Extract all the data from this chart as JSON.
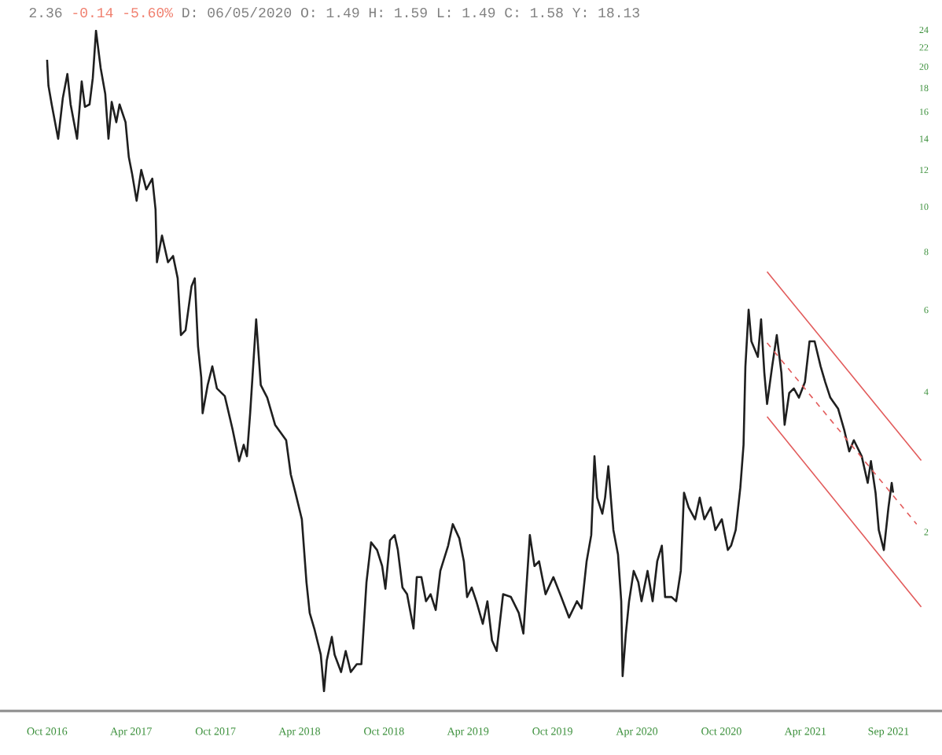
{
  "chart_data": {
    "type": "line",
    "log": "y",
    "annotations": [
      "2.36",
      "-0.14",
      "-5.60%",
      "D: 06/05/2020",
      "O: 1.49",
      "H: 1.59",
      "L: 1.49",
      "C: 1.58",
      "Y: 18.13"
    ],
    "xlim": [
      "2016-06-21",
      "2022-01-22"
    ],
    "ylim": [
      0.825,
      24
    ],
    "xticks": [
      {
        "value": "2016-10-01",
        "label": "Oct 2016"
      },
      {
        "value": "2017-04-01",
        "label": "Apr 2017"
      },
      {
        "value": "2017-10-01",
        "label": "Oct 2017"
      },
      {
        "value": "2018-04-01",
        "label": "Apr 2018"
      },
      {
        "value": "2018-10-01",
        "label": "Oct 2018"
      },
      {
        "value": "2019-04-01",
        "label": "Apr 2019"
      },
      {
        "value": "2019-10-01",
        "label": "Oct 2019"
      },
      {
        "value": "2020-04-01",
        "label": "Apr 2020"
      },
      {
        "value": "2020-10-01",
        "label": "Oct 2020"
      },
      {
        "value": "2021-04-01",
        "label": "Apr 2021"
      },
      {
        "value": "2021-09-28",
        "label": "Sep 2021"
      }
    ],
    "yticks": [
      2,
      4,
      6,
      8,
      10,
      12,
      14,
      16,
      18,
      20,
      22,
      24
    ],
    "x": [
      "2016-10-01",
      "2016-10-04",
      "2016-10-11",
      "2016-10-25",
      "2016-11-04",
      "2016-11-14",
      "2016-11-21",
      "2016-12-05",
      "2016-12-15",
      "2016-12-22",
      "2017-01-01",
      "2017-01-08",
      "2017-01-15",
      "2017-01-25",
      "2017-02-04",
      "2017-02-11",
      "2017-02-18",
      "2017-02-28",
      "2017-03-07",
      "2017-03-20",
      "2017-03-27",
      "2017-04-03",
      "2017-04-13",
      "2017-04-23",
      "2017-05-04",
      "2017-05-17",
      "2017-05-24",
      "2017-05-27",
      "2017-06-07",
      "2017-06-20",
      "2017-07-01",
      "2017-07-11",
      "2017-07-18",
      "2017-07-28",
      "2017-08-10",
      "2017-08-17",
      "2017-08-24",
      "2017-08-31",
      "2017-09-03",
      "2017-09-14",
      "2017-09-24",
      "2017-10-04",
      "2017-10-21",
      "2017-11-07",
      "2017-11-21",
      "2017-12-01",
      "2017-12-08",
      "2017-12-15",
      "2017-12-28",
      "2018-01-07",
      "2018-01-21",
      "2018-02-07",
      "2018-03-03",
      "2018-03-13",
      "2018-03-23",
      "2018-04-06",
      "2018-04-16",
      "2018-04-23",
      "2018-05-03",
      "2018-05-17",
      "2018-05-24",
      "2018-05-30",
      "2018-06-10",
      "2018-06-16",
      "2018-06-30",
      "2018-07-10",
      "2018-07-21",
      "2018-08-03",
      "2018-08-13",
      "2018-08-24",
      "2018-09-03",
      "2018-09-16",
      "2018-09-27",
      "2018-10-04",
      "2018-10-14",
      "2018-10-24",
      "2018-10-31",
      "2018-11-10",
      "2018-11-20",
      "2018-12-04",
      "2018-12-11",
      "2018-12-21",
      "2018-12-31",
      "2019-01-10",
      "2019-01-21",
      "2019-01-31",
      "2019-02-17",
      "2019-02-27",
      "2019-03-13",
      "2019-03-23",
      "2019-03-30",
      "2019-04-09",
      "2019-04-19",
      "2019-05-03",
      "2019-05-13",
      "2019-05-23",
      "2019-06-02",
      "2019-06-16",
      "2019-07-03",
      "2019-07-20",
      "2019-07-30",
      "2019-08-13",
      "2019-08-23",
      "2019-09-02",
      "2019-09-16",
      "2019-10-03",
      "2019-10-20",
      "2019-11-06",
      "2019-11-23",
      "2019-12-03",
      "2019-12-14",
      "2019-12-24",
      "2019-12-31",
      "2020-01-06",
      "2020-01-17",
      "2020-01-23",
      "2020-01-30",
      "2020-02-10",
      "2020-02-20",
      "2020-02-27",
      "2020-03-01",
      "2020-03-08",
      "2020-03-15",
      "2020-03-25",
      "2020-04-04",
      "2020-04-11",
      "2020-04-24",
      "2020-05-05",
      "2020-05-15",
      "2020-05-25",
      "2020-06-01",
      "2020-06-15",
      "2020-06-25",
      "2020-07-05",
      "2020-07-12",
      "2020-07-22",
      "2020-08-05",
      "2020-08-15",
      "2020-08-25",
      "2020-09-08",
      "2020-09-18",
      "2020-10-02",
      "2020-10-15",
      "2020-10-22",
      "2020-11-01",
      "2020-11-11",
      "2020-11-18",
      "2020-11-22",
      "2020-11-29",
      "2020-12-05",
      "2020-12-19",
      "2020-12-26",
      "2021-01-02",
      "2021-01-08",
      "2021-01-19",
      "2021-01-29",
      "2021-02-08",
      "2021-02-15",
      "2021-02-25",
      "2021-03-07",
      "2021-03-18",
      "2021-03-31",
      "2021-04-10",
      "2021-04-21",
      "2021-05-04",
      "2021-05-14",
      "2021-05-25",
      "2021-06-11",
      "2021-06-24",
      "2021-07-05",
      "2021-07-15",
      "2021-08-01",
      "2021-08-14",
      "2021-08-21",
      "2021-08-31",
      "2021-09-07",
      "2021-09-18",
      "2021-09-28",
      "2021-10-05",
      "2021-10-08"
    ],
    "series": [
      {
        "color": "#1f1f1f",
        "values": [
          20.7,
          18.2,
          16.6,
          14.0,
          17.1,
          19.3,
          16.6,
          14.0,
          18.6,
          16.4,
          16.6,
          18.9,
          23.9,
          19.9,
          17.5,
          14.0,
          16.8,
          15.2,
          16.6,
          15.2,
          12.8,
          11.8,
          10.3,
          12.0,
          10.9,
          11.5,
          9.87,
          7.6,
          8.67,
          7.6,
          7.84,
          7.02,
          5.3,
          5.43,
          6.75,
          7.02,
          5.02,
          4.3,
          3.6,
          4.14,
          4.54,
          4.07,
          3.92,
          3.32,
          2.84,
          3.08,
          2.91,
          3.6,
          5.73,
          4.14,
          3.89,
          3.4,
          3.15,
          2.66,
          2.43,
          2.13,
          1.56,
          1.34,
          1.24,
          1.09,
          0.91,
          1.06,
          1.19,
          1.09,
          1.0,
          1.11,
          1.0,
          1.04,
          1.04,
          1.56,
          1.9,
          1.83,
          1.69,
          1.51,
          1.92,
          1.97,
          1.83,
          1.52,
          1.47,
          1.24,
          1.6,
          1.6,
          1.42,
          1.47,
          1.36,
          1.65,
          1.87,
          2.08,
          1.94,
          1.73,
          1.45,
          1.52,
          1.42,
          1.27,
          1.42,
          1.17,
          1.11,
          1.47,
          1.45,
          1.34,
          1.21,
          1.97,
          1.69,
          1.73,
          1.47,
          1.6,
          1.45,
          1.31,
          1.42,
          1.37,
          1.73,
          1.97,
          2.91,
          2.37,
          2.19,
          2.37,
          2.77,
          2.02,
          1.79,
          1.42,
          0.98,
          1.21,
          1.42,
          1.65,
          1.56,
          1.42,
          1.65,
          1.42,
          1.73,
          1.87,
          1.45,
          1.45,
          1.42,
          1.65,
          2.43,
          2.26,
          2.13,
          2.37,
          2.13,
          2.26,
          2.02,
          2.13,
          1.83,
          1.87,
          2.02,
          2.49,
          3.08,
          4.54,
          6.01,
          5.14,
          4.76,
          5.73,
          4.4,
          3.77,
          4.54,
          5.3,
          4.4,
          3.4,
          3.98,
          4.07,
          3.89,
          4.2,
          5.14,
          5.14,
          4.54,
          4.2,
          3.89,
          3.68,
          3.32,
          2.98,
          3.15,
          2.91,
          2.55,
          2.84,
          2.43,
          2.02,
          1.83,
          2.26,
          2.55,
          2.43
        ]
      },
      {
        "type": "line",
        "x": [
          "2021-01-08",
          "2021-12-08"
        ],
        "values": [
          7.25,
          2.85
        ],
        "color": "#e25b5b",
        "line_style": "solid"
      },
      {
        "type": "line",
        "x": [
          "2021-01-08",
          "2021-11-28"
        ],
        "values": [
          5.1,
          2.08
        ],
        "color": "#e25b5b",
        "line_style": "dashed"
      },
      {
        "type": "line",
        "x": [
          "2021-01-08",
          "2021-12-08"
        ],
        "values": [
          3.54,
          1.38
        ],
        "color": "#e25b5b",
        "line_style": "solid"
      }
    ]
  }
}
